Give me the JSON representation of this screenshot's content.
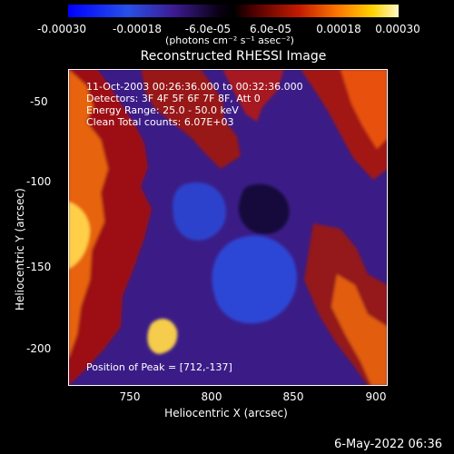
{
  "chart_data": {
    "type": "heatmap",
    "title": "Reconstructed RHESSI Image",
    "xlabel": "Heliocentric X (arcsec)",
    "ylabel": "Heliocentric Y (arcsec)",
    "xlim": [
      712,
      903
    ],
    "ylim": [
      -223,
      -27
    ],
    "x_ticks": [
      "750",
      "800",
      "850",
      "900"
    ],
    "y_ticks": [
      "-50",
      "-100",
      "-150",
      "-200"
    ],
    "colorbar": {
      "min": -0.0003,
      "max": 0.0003,
      "ticks": [
        "-0.00030",
        "-0.00018",
        "-6.0e-05",
        "6.0e-05",
        "0.00018",
        "0.00030"
      ],
      "units_label": "(photons cm⁻² s⁻¹ asec⁻²)"
    },
    "annotations": [
      "11-Oct-2003 00:26:36.000 to 00:32:36.000",
      "Detectors: 3F 4F 5F 6F 7F 8F, Att 0",
      "Energy Range: 25.0 - 50.0 keV",
      "Clean    Total counts: 6.07E+03"
    ],
    "peak_label": "Position of Peak = [712,-137]",
    "peak_position": [
      712,
      -137
    ],
    "timestamp": "6-May-2022 06:36",
    "colors": {
      "background": "#000000",
      "text": "#ffffff",
      "low": "#3c1b91",
      "high": "#fff48a"
    }
  }
}
